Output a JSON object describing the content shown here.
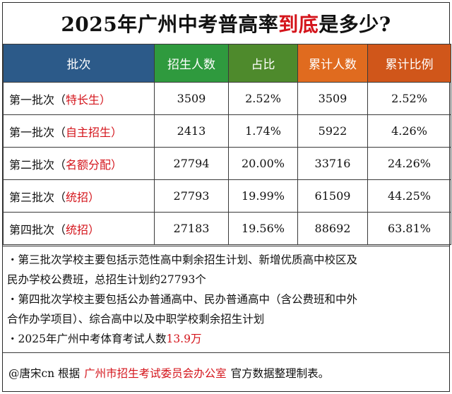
{
  "title": {
    "prefix": "2025年广州中考普高率",
    "highlight": "到底",
    "suffix": "是多少?"
  },
  "table": {
    "headers": [
      "批次",
      "招生人数",
      "占比",
      "累计人数",
      "累计比例"
    ],
    "rows": [
      {
        "batch": "第一批次（",
        "tag": "特长生",
        "close": "）",
        "quota": "3509",
        "ratio": "2.52%",
        "cumulative": "3509",
        "cum_ratio": "2.52%"
      },
      {
        "batch": "第一批次（",
        "tag": "自主招生",
        "close": "）",
        "quota": "2413",
        "ratio": "1.74%",
        "cumulative": "5922",
        "cum_ratio": "4.26%"
      },
      {
        "batch": "第二批次（",
        "tag": "名额分配",
        "close": "）",
        "quota": "27794",
        "ratio": "20.00%",
        "cumulative": "33716",
        "cum_ratio": "24.26%"
      },
      {
        "batch": "第三批次（",
        "tag": "统招",
        "close": "）",
        "quota": "27793",
        "ratio": "19.99%",
        "cumulative": "61509",
        "cum_ratio": "44.25%"
      },
      {
        "batch": "第四批次（",
        "tag": "统招",
        "close": "）",
        "quota": "27183",
        "ratio": "19.56%",
        "cumulative": "88692",
        "cum_ratio": "63.81%"
      }
    ]
  },
  "notes": {
    "line1": "・第三批次学校主要包括示范性高中剩余招生计划、新增优质高中校区及",
    "line2": "民办学校公费班，总招生计划约27793个",
    "line3": "・第四批次学校主要包括公办普通高中、民办普通高中（含公费班和中外",
    "line4": "合作办学项目）、综合高中以及中职学校剩余招生计划",
    "line5_prefix": "・2025年广州中考体育考试人数",
    "line5_highlight": "13.9万"
  },
  "footer": {
    "author": "@唐宋cn 根据",
    "org": "广州市招生考试委员会办公室",
    "suffix": "官方数据整理制表。"
  },
  "colors": {
    "header_batch": "#2c5a89",
    "header_quota": "#2f9a3e",
    "header_ratio": "#4e8a2c",
    "header_cumulative": "#e06b1f",
    "header_cum_ratio": "#d0561a",
    "highlight_red": "#d4141b",
    "highlight_brown": "#b8561a"
  }
}
